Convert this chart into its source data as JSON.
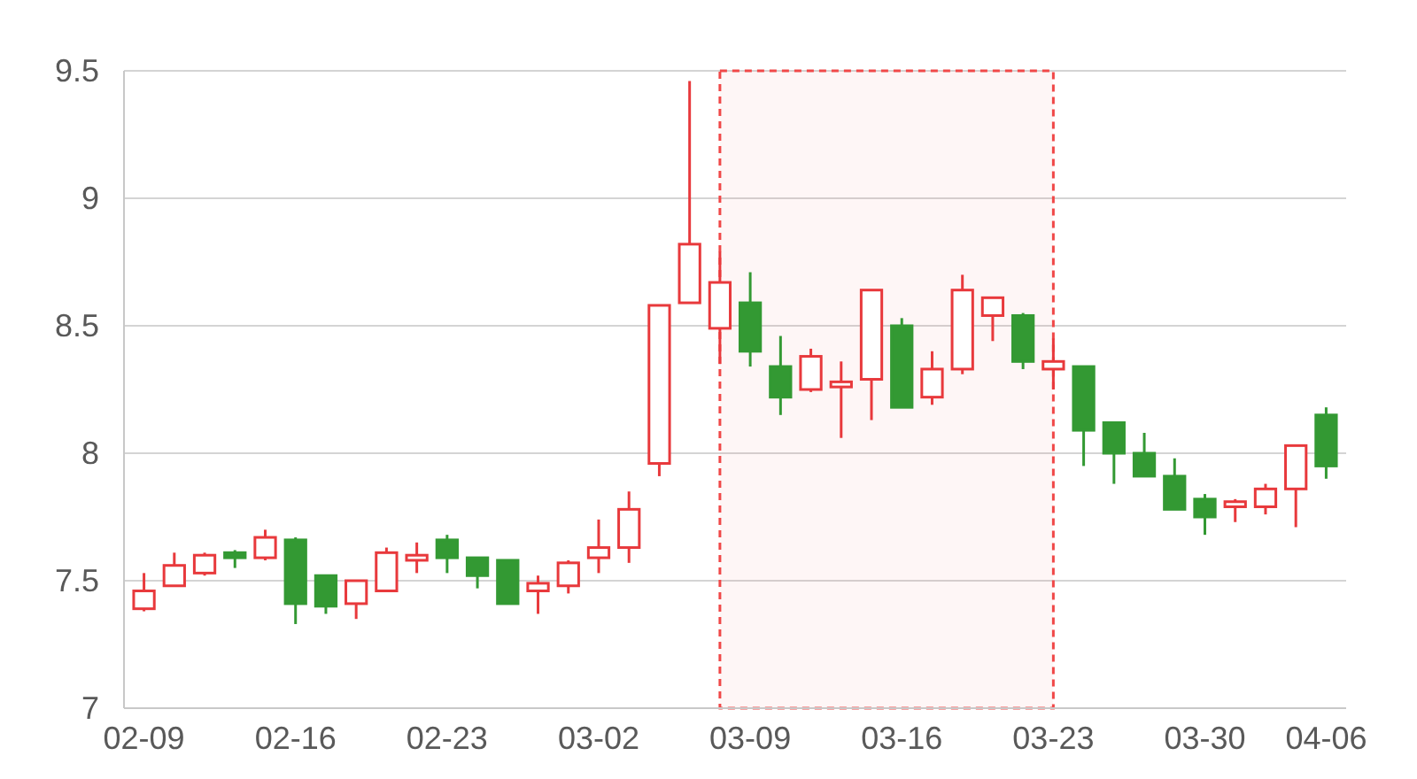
{
  "chart_data": {
    "type": "candlestick",
    "categories": [
      "02-09",
      null,
      null,
      null,
      null,
      "02-16",
      null,
      null,
      null,
      null,
      "02-23",
      null,
      null,
      null,
      null,
      "03-02",
      null,
      null,
      null,
      null,
      "03-09",
      null,
      null,
      null,
      null,
      "03-16",
      null,
      null,
      null,
      null,
      "03-23",
      null,
      null,
      null,
      null,
      "03-30",
      null,
      null,
      null,
      "04-06"
    ],
    "ohlc": [
      [
        7.39,
        7.53,
        7.38,
        7.46
      ],
      [
        7.48,
        7.61,
        7.48,
        7.56
      ],
      [
        7.53,
        7.61,
        7.52,
        7.6
      ],
      [
        7.61,
        7.62,
        7.55,
        7.59
      ],
      [
        7.59,
        7.7,
        7.58,
        7.67
      ],
      [
        7.66,
        7.67,
        7.33,
        7.41
      ],
      [
        7.52,
        7.52,
        7.37,
        7.4
      ],
      [
        7.41,
        7.5,
        7.35,
        7.5
      ],
      [
        7.46,
        7.63,
        7.46,
        7.61
      ],
      [
        7.58,
        7.65,
        7.53,
        7.6
      ],
      [
        7.66,
        7.68,
        7.53,
        7.59
      ],
      [
        7.59,
        7.59,
        7.47,
        7.52
      ],
      [
        7.58,
        7.58,
        7.41,
        7.41
      ],
      [
        7.46,
        7.52,
        7.37,
        7.49
      ],
      [
        7.48,
        7.58,
        7.45,
        7.57
      ],
      [
        7.59,
        7.74,
        7.53,
        7.63
      ],
      [
        7.63,
        7.85,
        7.57,
        7.78
      ],
      [
        7.96,
        8.58,
        7.91,
        8.58
      ],
      [
        8.59,
        9.46,
        8.59,
        8.82
      ],
      [
        8.49,
        8.79,
        8.35,
        8.67
      ],
      [
        8.59,
        8.71,
        8.34,
        8.4
      ],
      [
        8.34,
        8.46,
        8.15,
        8.22
      ],
      [
        8.25,
        8.41,
        8.24,
        8.38
      ],
      [
        8.26,
        8.36,
        8.06,
        8.28
      ],
      [
        8.29,
        8.64,
        8.13,
        8.64
      ],
      [
        8.5,
        8.53,
        8.18,
        8.18
      ],
      [
        8.22,
        8.4,
        8.19,
        8.33
      ],
      [
        8.33,
        8.7,
        8.31,
        8.64
      ],
      [
        8.54,
        8.61,
        8.44,
        8.61
      ],
      [
        8.54,
        8.55,
        8.33,
        8.36
      ],
      [
        8.33,
        8.45,
        8.25,
        8.36
      ],
      [
        8.34,
        8.34,
        7.95,
        8.09
      ],
      [
        8.12,
        8.12,
        7.88,
        8
      ],
      [
        8,
        8.08,
        7.91,
        7.91
      ],
      [
        7.91,
        7.98,
        7.78,
        7.78
      ],
      [
        7.82,
        7.84,
        7.68,
        7.75
      ],
      [
        7.79,
        7.82,
        7.73,
        7.81
      ],
      [
        7.79,
        7.88,
        7.76,
        7.86
      ],
      [
        7.86,
        8.03,
        7.71,
        8.03
      ],
      [
        8.15,
        8.18,
        7.9,
        7.95
      ]
    ],
    "colors": [
      "#e8393c",
      "#e8393c",
      "#e8393c",
      "#339933",
      "#e8393c",
      "#339933",
      "#339933",
      "#e8393c",
      "#e8393c",
      "#e8393c",
      "#339933",
      "#339933",
      "#339933",
      "#e8393c",
      "#e8393c",
      "#e8393c",
      "#e8393c",
      "#e8393c",
      "#e8393c",
      "#e8393c",
      "#339933",
      "#339933",
      "#e8393c",
      "#e8393c",
      "#e8393c",
      "#339933",
      "#e8393c",
      "#e8393c",
      "#e8393c",
      "#339933",
      "#e8393c",
      "#339933",
      "#339933",
      "#339933",
      "#339933",
      "#339933",
      "#e8393c",
      "#e8393c",
      "#e8393c",
      "#339933"
    ],
    "ylim": [
      7,
      9.5
    ],
    "yticks": [
      7,
      7.5,
      8,
      8.5,
      9,
      9.5
    ],
    "grid": "y"
  }
}
